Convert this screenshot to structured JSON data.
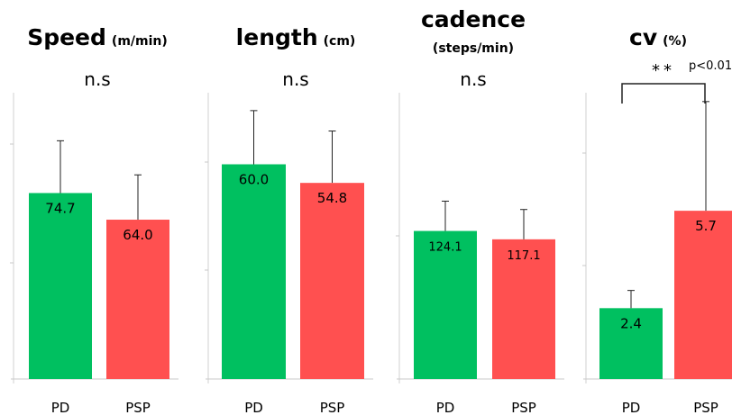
{
  "chart_data": [
    {
      "type": "bar",
      "title": "Speed",
      "unit": "(m/min)",
      "significance": "n.s",
      "categories": [
        "PD",
        "PSP"
      ],
      "values": [
        74.7,
        64.0
      ],
      "labels": [
        "74.7",
        "64.0"
      ],
      "error_plus": [
        21.0,
        18.0
      ],
      "ylim": [
        0,
        115
      ],
      "colors": [
        "#00c060",
        "#ff5050"
      ]
    },
    {
      "type": "bar",
      "title": "length",
      "unit": "(cm)",
      "significance": "n.s",
      "categories": [
        "PD",
        "PSP"
      ],
      "values": [
        60.0,
        54.8
      ],
      "labels": [
        "60.0",
        "54.8"
      ],
      "error_plus": [
        15.0,
        14.5
      ],
      "ylim": [
        0,
        80
      ],
      "colors": [
        "#00c060",
        "#ff5050"
      ]
    },
    {
      "type": "bar",
      "title": "cadence",
      "unit": "(steps/min)",
      "significance": "n.s",
      "categories": [
        "PD",
        "PSP"
      ],
      "values": [
        124.1,
        117.1
      ],
      "labels": [
        "124.1",
        "117.1"
      ],
      "error_plus": [
        25.0,
        25.0
      ],
      "ylim": [
        0,
        240
      ],
      "colors": [
        "#00c060",
        "#ff5050"
      ]
    },
    {
      "type": "bar",
      "title": "cv",
      "unit": "(%)",
      "significance": "**",
      "p_value": "p<0.01",
      "categories": [
        "PD",
        "PSP"
      ],
      "values": [
        2.4,
        5.7
      ],
      "labels": [
        "2.4",
        "5.7"
      ],
      "error_plus": [
        0.6,
        3.7
      ],
      "ylim": [
        0,
        9.7
      ],
      "colors": [
        "#00c060",
        "#ff5050"
      ]
    }
  ]
}
